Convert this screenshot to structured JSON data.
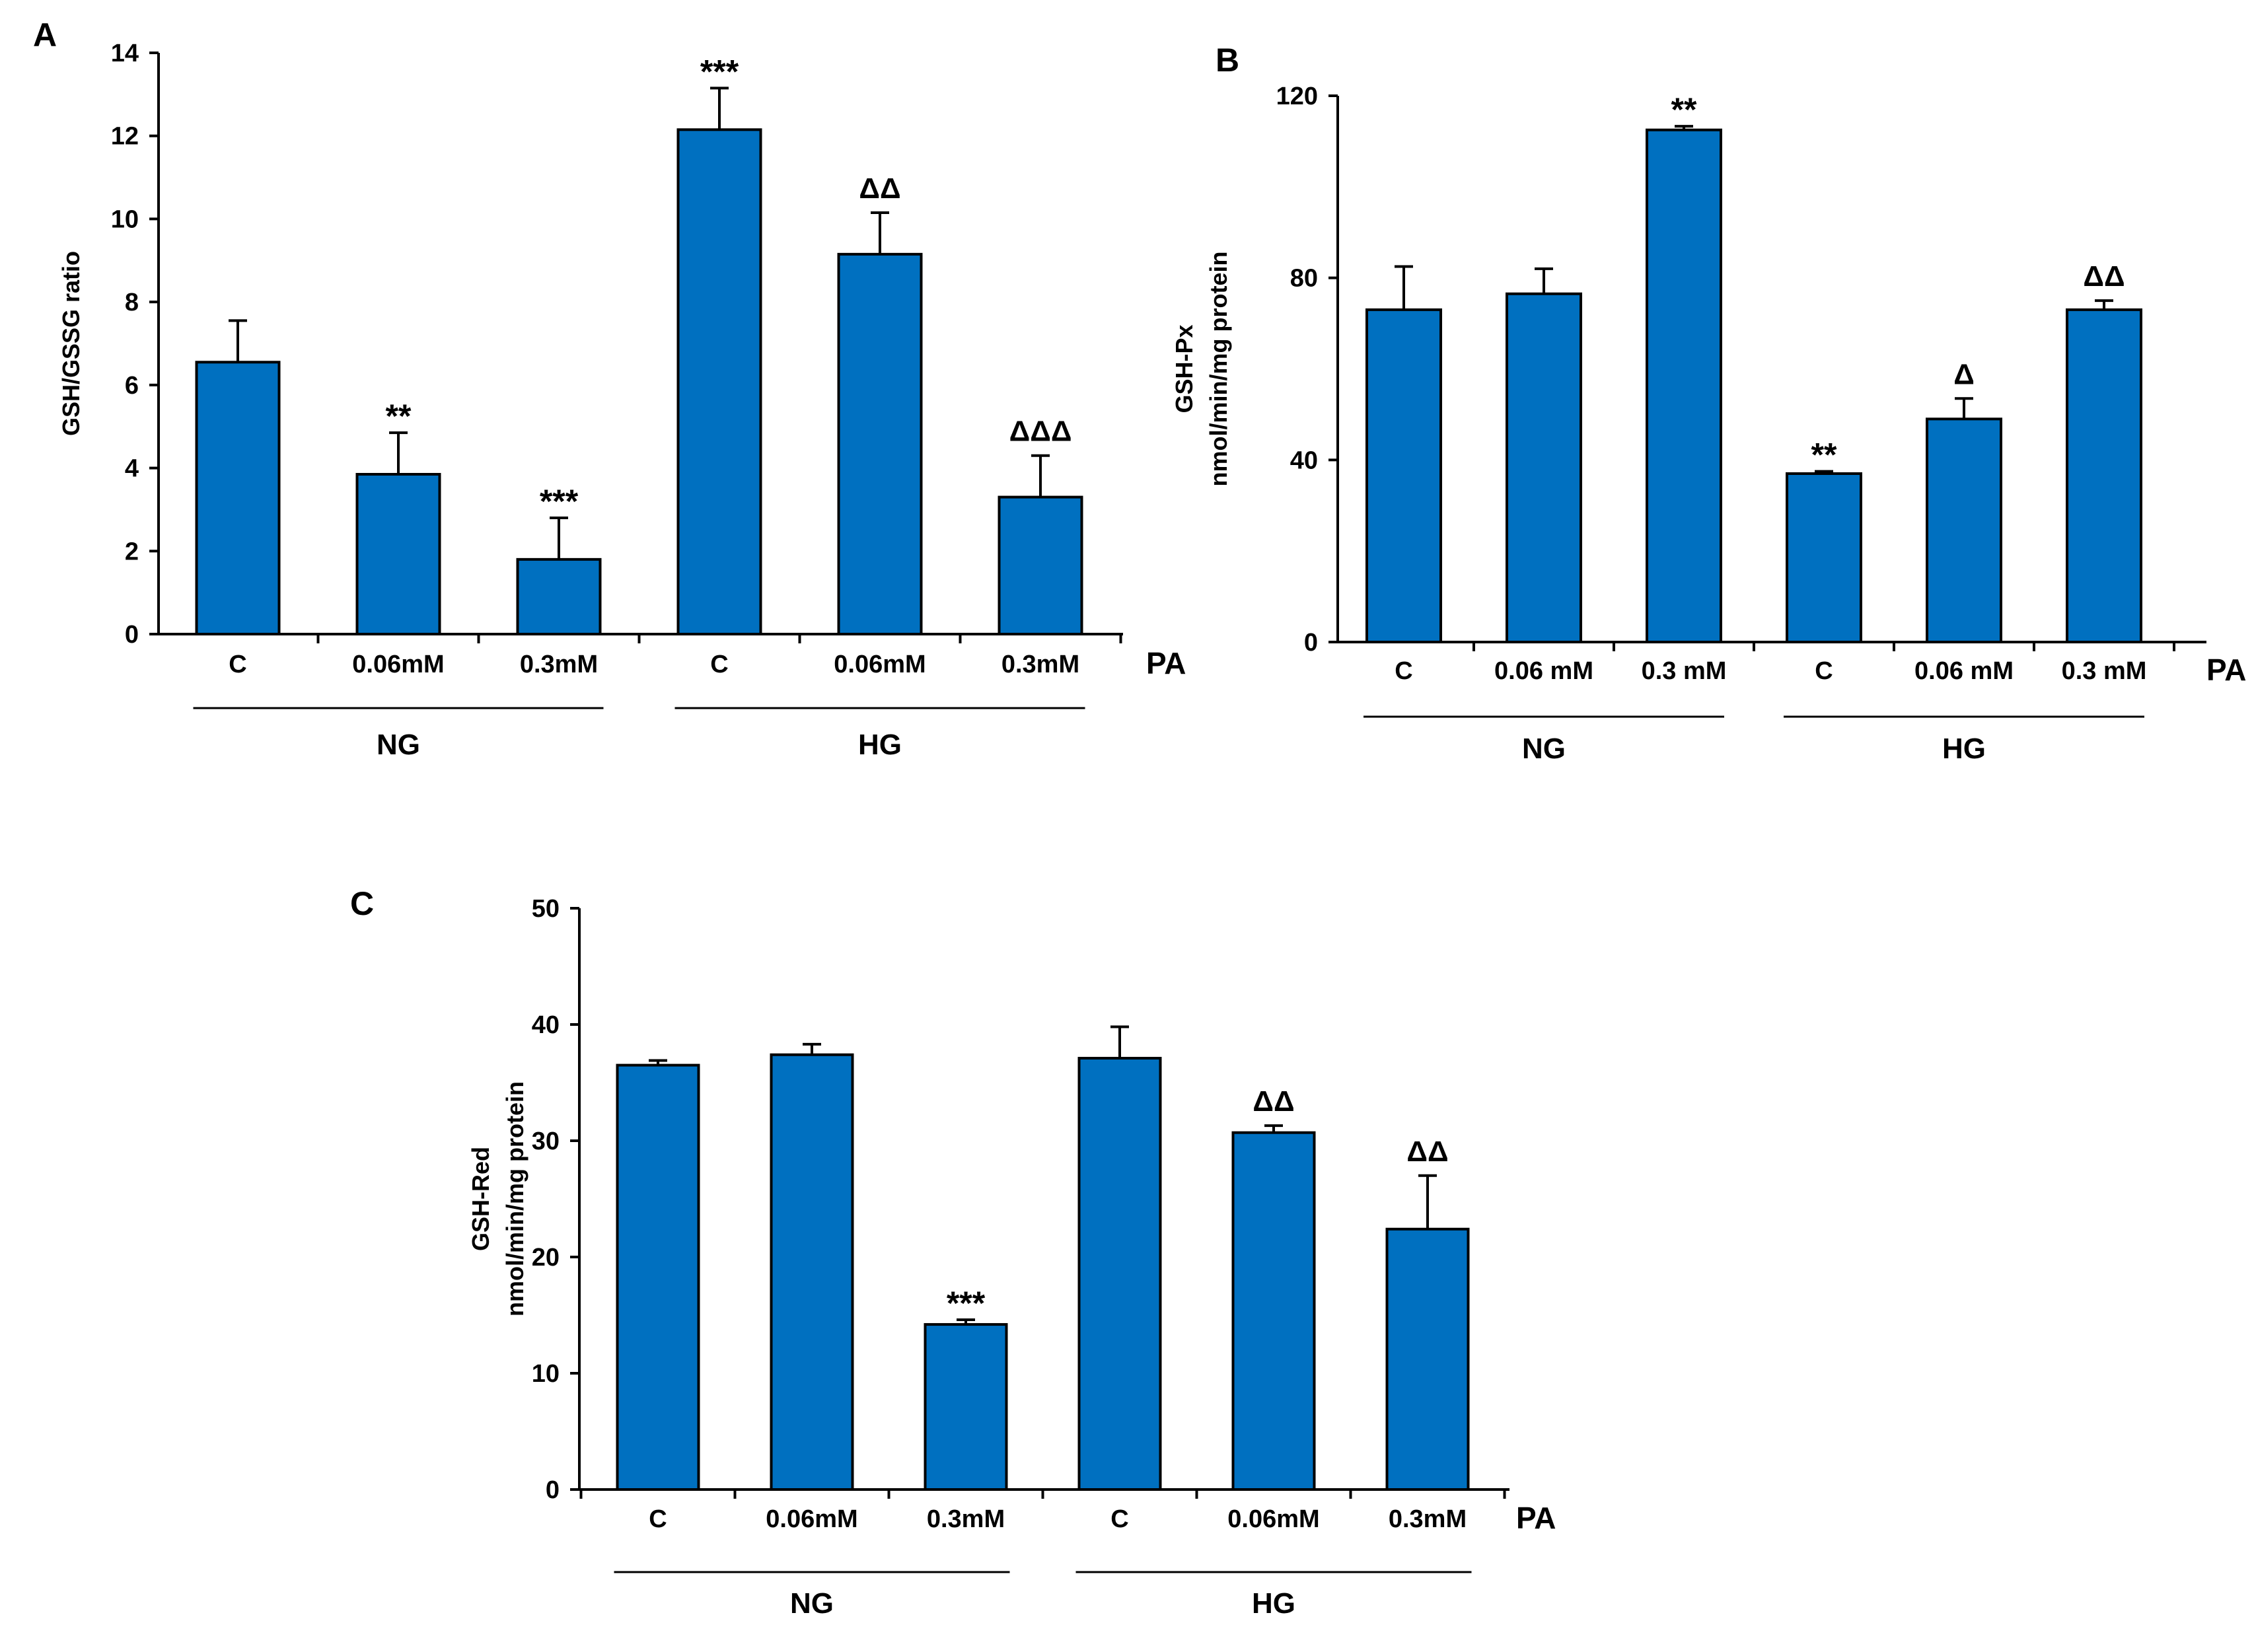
{
  "chart_data": [
    {
      "type": "bar",
      "panel_label": "A",
      "ylabel": [
        "GSH/GSSG ratio"
      ],
      "ylim": [
        0,
        14
      ],
      "yticks": [
        0,
        2,
        4,
        6,
        8,
        10,
        12,
        14
      ],
      "categories": [
        "C",
        "0.06mM",
        "0.3mM",
        "C",
        "0.06mM",
        "0.3mM"
      ],
      "values": [
        6.55,
        3.85,
        1.8,
        12.15,
        9.15,
        3.3
      ],
      "errors": [
        1.0,
        1.0,
        1.0,
        1.0,
        1.0,
        1.0
      ],
      "annotations": [
        "",
        "**",
        "***",
        "***",
        "ΔΔ",
        "ΔΔΔ"
      ],
      "treatment_label": "PA",
      "groups": [
        {
          "label": "NG",
          "start": 0,
          "end": 2
        },
        {
          "label": "HG",
          "start": 3,
          "end": 5
        }
      ],
      "bar_color": "#0070c0",
      "title": "",
      "xlabel": ""
    },
    {
      "type": "bar",
      "panel_label": "B",
      "ylabel": [
        "GSH-Px",
        "nmol/min/mg protein"
      ],
      "ylim": [
        0,
        120
      ],
      "yticks": [
        0,
        40,
        80,
        120
      ],
      "categories": [
        "C",
        "0.06 mM",
        "0.3 mM",
        "C",
        "0.06 mM",
        "0.3 mM"
      ],
      "values": [
        73,
        76.5,
        112.5,
        37,
        49,
        73
      ],
      "errors": [
        9.5,
        5.5,
        0.8,
        0.5,
        4.5,
        2
      ],
      "annotations": [
        "",
        "",
        "**",
        "**",
        "Δ",
        "ΔΔ"
      ],
      "treatment_label": "PA",
      "groups": [
        {
          "label": "NG",
          "start": 0,
          "end": 2
        },
        {
          "label": "HG",
          "start": 3,
          "end": 5
        }
      ],
      "bar_color": "#0070c0",
      "title": "",
      "xlabel": ""
    },
    {
      "type": "bar",
      "panel_label": "C",
      "ylabel": [
        "GSH-Red",
        "nmol/min/mg protein"
      ],
      "ylim": [
        0,
        50
      ],
      "yticks": [
        0,
        10,
        20,
        30,
        40,
        50
      ],
      "categories": [
        "C",
        "0.06mM",
        "0.3mM",
        "C",
        "0.06mM",
        "0.3mM"
      ],
      "values": [
        36.5,
        37.4,
        14.2,
        37.1,
        30.7,
        22.4
      ],
      "errors": [
        0.4,
        0.9,
        0.4,
        2.7,
        0.6,
        4.6
      ],
      "annotations": [
        "",
        "",
        "***",
        "",
        "ΔΔ",
        "ΔΔ"
      ],
      "treatment_label": "PA",
      "groups": [
        {
          "label": "NG",
          "start": 0,
          "end": 2
        },
        {
          "label": "HG",
          "start": 3,
          "end": 5
        }
      ],
      "bar_color": "#0070c0",
      "title": "",
      "xlabel": ""
    }
  ]
}
